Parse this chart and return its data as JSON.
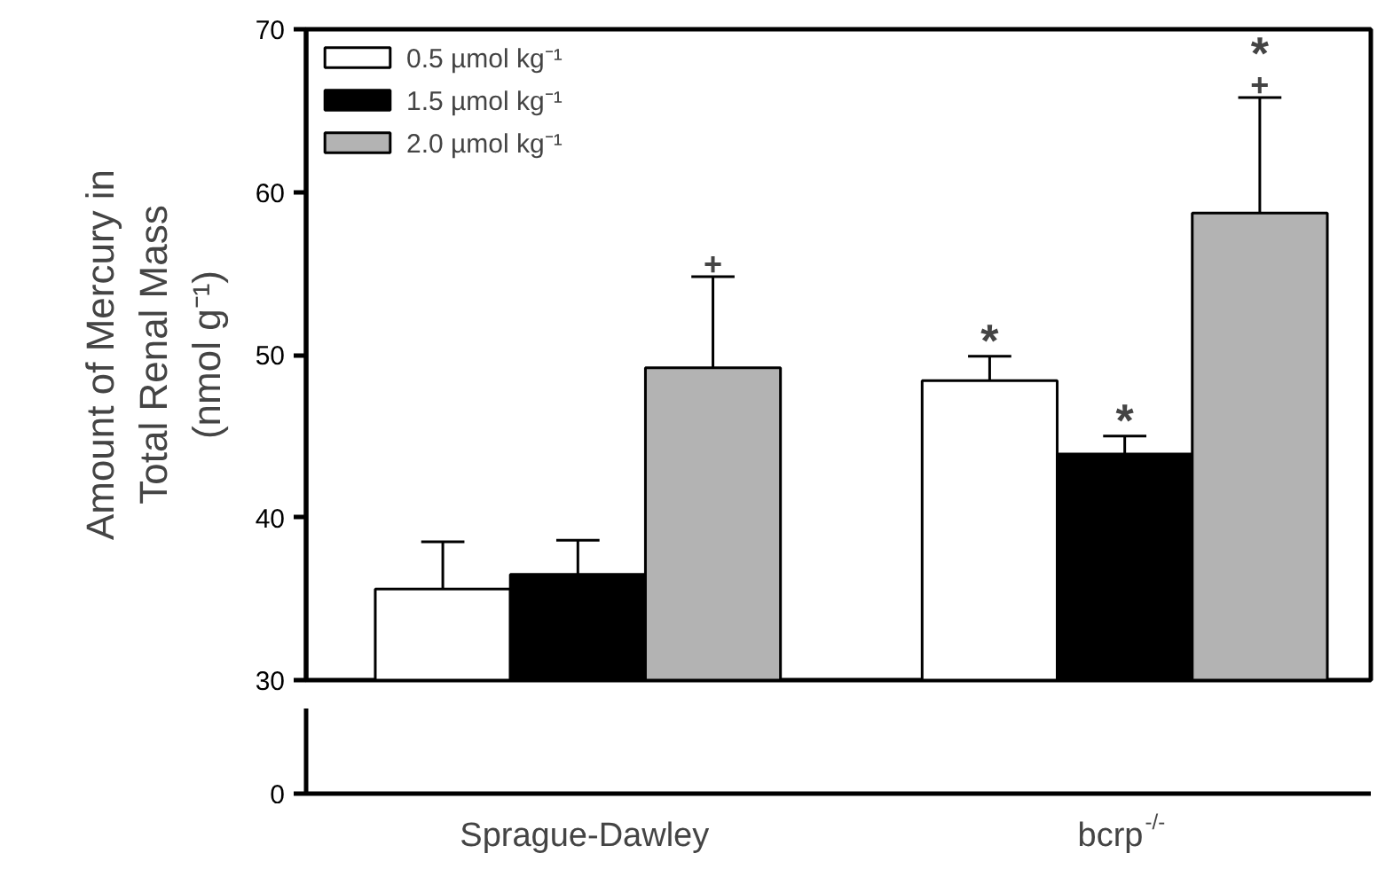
{
  "chart_data": {
    "type": "bar",
    "ylabel": "Amount of Mercury in Total Renal Mass (nmol g⁻¹)",
    "categories": [
      "Sprague-Dawley",
      "bcrp$^{-/-}$"
    ],
    "series": [
      {
        "name": "0.5 µmol kg⁻¹",
        "color": "#ffffff",
        "values": [
          35.6,
          48.4
        ],
        "errors": [
          [
            35.6,
            38.5
          ],
          [
            48.4,
            49.9
          ]
        ],
        "value_labels": [
          null,
          "*"
        ]
      },
      {
        "name": "1.5 µmol kg⁻¹",
        "color": "#000000",
        "values": [
          36.5,
          43.9
        ],
        "errors": [
          [
            36.5,
            38.6
          ],
          [
            43.9,
            45.0
          ]
        ],
        "value_labels": [
          null,
          "*"
        ]
      },
      {
        "name": "2.0 µmol kg⁻¹",
        "color": "#b3b3b3",
        "values": [
          49.2,
          58.7
        ],
        "errors": [
          [
            49.2,
            54.8
          ],
          [
            58.7,
            65.8
          ]
        ],
        "value_labels": [
          "+",
          "*\n+"
        ]
      }
    ],
    "ylim": [
      30,
      70
    ],
    "yticks": [
      30,
      40,
      50,
      60,
      70
    ],
    "legend": "top left",
    "grid": false,
    "annotations": [
      "0"
    ]
  }
}
